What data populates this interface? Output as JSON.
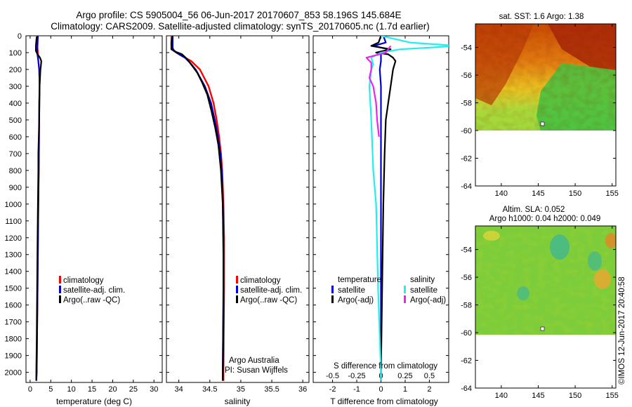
{
  "title_line1": "Argo profile: CS 5905004_56 06-Jun-2017 20170607_853 58.196S 145.684E",
  "title_line2": "Climatology: CARS2009. Satellite-adjusted climatology: synTS_20170605.nc (1.7d earlier)",
  "colors": {
    "climatology": "#ff0000",
    "satellite": "#0000dd",
    "argo": "#000000",
    "sal_satellite": "#22eeee",
    "sal_argo": "#ee22ee"
  },
  "chart_data": [
    {
      "type": "line",
      "name": "temperature-profile",
      "xlabel": "temperature (deg C)",
      "ylabel": "",
      "xlim": [
        -1,
        32
      ],
      "ylim": [
        2060,
        0
      ],
      "xticks": [
        "0",
        "5",
        "10",
        "15",
        "20",
        "25",
        "30"
      ],
      "yticks": [
        "0",
        "100",
        "200",
        "300",
        "400",
        "500",
        "600",
        "700",
        "800",
        "900",
        "1000",
        "1100",
        "1200",
        "1300",
        "1400",
        "1500",
        "1600",
        "1700",
        "1800",
        "1900",
        "2000"
      ],
      "legend": [
        "climatology",
        "satellite-adj. clim.",
        "Argo(..raw -QC)"
      ],
      "legend_position": "center",
      "series": [
        {
          "name": "climatology",
          "depth": [
            0,
            50,
            100,
            150,
            200,
            300,
            500,
            800,
            1000,
            1500,
            2000,
            2050
          ],
          "values": [
            1.7,
            1.7,
            1.9,
            2.0,
            2.2,
            2.3,
            2.2,
            2.1,
            2.0,
            1.8,
            1.6,
            1.5
          ]
        },
        {
          "name": "satellite-adj. clim.",
          "depth": [
            0,
            50,
            100,
            150,
            200,
            300,
            500,
            800,
            1000,
            1500,
            2000,
            2050
          ],
          "values": [
            1.9,
            1.8,
            1.7,
            2.0,
            2.2,
            2.3,
            2.2,
            2.1,
            2.0,
            1.8,
            1.6,
            1.5
          ]
        },
        {
          "name": "Argo(..raw -QC)",
          "depth": [
            5,
            30,
            60,
            90,
            110,
            130,
            150,
            180,
            200,
            250,
            300,
            400,
            500,
            600,
            700,
            800,
            1000,
            1200,
            1500,
            1800,
            2000,
            2050
          ],
          "values": [
            1.6,
            1.5,
            1.4,
            1.4,
            1.8,
            2.4,
            2.7,
            2.6,
            2.5,
            2.4,
            2.3,
            2.2,
            2.2,
            2.1,
            2.0,
            2.0,
            1.9,
            1.8,
            1.7,
            1.6,
            1.5,
            1.5
          ]
        }
      ]
    },
    {
      "type": "line",
      "name": "salinity-profile",
      "xlabel": "salinity",
      "ylabel": "",
      "xlim": [
        33.8,
        36.1
      ],
      "ylim": [
        2060,
        0
      ],
      "xticks": [
        "34",
        "34.5",
        "35",
        "35.5",
        "36"
      ],
      "legend": [
        "climatology",
        "satellite-adj. clim.",
        "Argo(..raw -QC)"
      ],
      "legend_position": "center",
      "annotations": [
        "Argo Australia",
        "PI: Susan Wijffels"
      ],
      "series": [
        {
          "name": "climatology",
          "depth": [
            0,
            50,
            90,
            120,
            150,
            200,
            300,
            400,
            500,
            600,
            700,
            800,
            900,
            1000,
            1200,
            1500,
            2000,
            2050
          ],
          "values": [
            33.88,
            33.88,
            33.92,
            34.05,
            34.2,
            34.34,
            34.48,
            34.56,
            34.61,
            34.65,
            34.68,
            34.7,
            34.71,
            34.72,
            34.73,
            34.73,
            34.72,
            34.72
          ]
        },
        {
          "name": "satellite-adj. clim.",
          "depth": [
            0,
            50,
            80,
            100,
            130,
            160,
            200,
            300,
            400,
            500,
            600,
            700,
            800,
            1000,
            1200,
            1500,
            2000,
            2050
          ],
          "values": [
            33.9,
            33.9,
            33.9,
            33.96,
            34.1,
            34.18,
            34.27,
            34.42,
            34.52,
            34.58,
            34.63,
            34.67,
            34.69,
            34.71,
            34.72,
            34.72,
            34.71,
            34.71
          ]
        },
        {
          "name": "Argo(..raw -QC)",
          "depth": [
            5,
            40,
            80,
            95,
            110,
            140,
            180,
            220,
            280,
            350,
            450,
            550,
            650,
            800,
            1000,
            1300,
            1600,
            2000,
            2050
          ],
          "values": [
            33.9,
            33.88,
            33.88,
            33.95,
            34.05,
            34.14,
            34.22,
            34.3,
            34.38,
            34.46,
            34.53,
            34.59,
            34.64,
            34.68,
            34.71,
            34.72,
            34.72,
            34.71,
            34.71
          ]
        }
      ]
    },
    {
      "type": "line",
      "name": "difference-profile",
      "xlabel": "T difference from climatology",
      "x2label": "S difference from climatology",
      "xlim": [
        -2.8,
        2.8
      ],
      "ylim": [
        2060,
        0
      ],
      "xticks": [
        "-2",
        "-1",
        "0",
        "1",
        "2"
      ],
      "x2ticks": [
        "-0.5",
        "-0.25",
        "0",
        "0.25",
        "0.5"
      ],
      "legend_groups": [
        {
          "title": "temperature",
          "entries": [
            "satellite",
            "Argo(-adj)"
          ]
        },
        {
          "title": "salinity",
          "entries": [
            "satellite",
            "Argo(-adj)"
          ]
        }
      ],
      "legend_position": "center",
      "series": [
        {
          "name": "temperature satellite",
          "depth": [
            0,
            40,
            60,
            80,
            100,
            120,
            150,
            200,
            300,
            500,
            800,
            1000,
            1500,
            2000,
            2050
          ],
          "values": [
            0.1,
            0.2,
            -0.3,
            0.3,
            0.0,
            0.0,
            0.0,
            -0.05,
            0.0,
            0.0,
            0.0,
            0.0,
            0.0,
            0.0,
            0.0
          ]
        },
        {
          "name": "temperature Argo(-adj)",
          "depth": [
            0,
            40,
            60,
            80,
            100,
            110,
            130,
            150,
            200,
            300,
            400,
            500,
            700,
            1000,
            1500,
            2000,
            2050
          ],
          "values": [
            0.0,
            -0.1,
            -0.4,
            0.4,
            -0.2,
            0.3,
            0.5,
            0.6,
            0.5,
            0.4,
            0.3,
            0.2,
            0.15,
            0.1,
            0.05,
            0.0,
            0.0
          ]
        },
        {
          "name": "salinity satellite",
          "depth": [
            0,
            40,
            60,
            80,
            100,
            130,
            170,
            200,
            300,
            500,
            800,
            1000,
            1500,
            2000,
            2050
          ],
          "values": [
            0.0,
            0.3,
            0.8,
            0.2,
            0.0,
            -0.1,
            -0.08,
            -0.1,
            -0.12,
            -0.1,
            -0.08,
            -0.05,
            -0.03,
            0.0,
            0.0
          ]
        },
        {
          "name": "salinity Argo(-adj)",
          "depth": [
            60,
            100,
            130,
            160,
            200,
            250,
            300,
            400,
            500,
            600
          ],
          "values": [
            0.1,
            0.05,
            -0.15,
            -0.1,
            -0.1,
            -0.12,
            -0.08,
            -0.05,
            -0.04,
            -0.02
          ]
        }
      ]
    },
    {
      "type": "heatmap",
      "name": "sst-map",
      "title": "sat. SST: 1.6 Argo: 1.38",
      "xlim": [
        136.5,
        155.5
      ],
      "ylim": [
        -64,
        -52.3
      ],
      "xticks": [
        "140",
        "145",
        "150",
        "155"
      ],
      "yticks": [
        "-54",
        "-56",
        "-58",
        "-60",
        "-62",
        "-64"
      ],
      "data_extent_lat": [
        -60,
        -52.3
      ]
    },
    {
      "type": "heatmap",
      "name": "sla-map",
      "title": "Altim. SLA: 0.052",
      "subtitle": "Argo h1000: 0.04 h2000: 0.049",
      "xlim": [
        136.5,
        155.5
      ],
      "ylim": [
        -64,
        -52.3
      ],
      "xticks": [
        "140",
        "145",
        "150",
        "155"
      ],
      "yticks": [
        "-54",
        "-56",
        "-58",
        "-60",
        "-62",
        "-64"
      ],
      "data_extent_lat": [
        -60,
        -52.3
      ]
    }
  ],
  "legend_labels": {
    "climatology": "climatology",
    "satellite_clim": "satellite-adj. clim.",
    "argo_raw": "Argo(..raw -QC)",
    "temperature": "temperature",
    "salinity": "salinity",
    "satellite": "satellite",
    "argo_adj": "Argo(-adj)"
  },
  "annotations": {
    "argo_australia": "Argo Australia",
    "pi": "PI: Susan Wijffels",
    "watermark": "©IMOS 12-Jun-2017 20:40:58"
  }
}
